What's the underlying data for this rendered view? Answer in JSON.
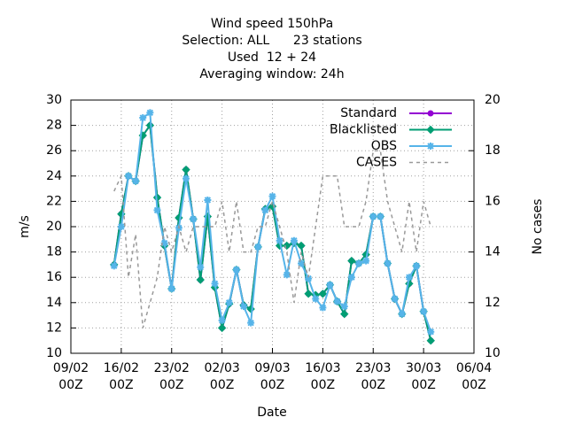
{
  "chart_data": {
    "type": "line",
    "title_lines": [
      "Wind speed 150hPa",
      "Selection: ALL      23 stations",
      "Used  12 + 24",
      "Averaging window: 24h"
    ],
    "xlabel": "Date",
    "ylabel": "m/s",
    "y2label": "No cases",
    "x": [
      "15/02 00Z",
      "16/02 00Z",
      "17/02 00Z",
      "18/02 00Z",
      "19/02 00Z",
      "20/02 00Z",
      "21/02 00Z",
      "22/02 00Z",
      "23/02 00Z",
      "24/02 00Z",
      "25/02 00Z",
      "26/02 00Z",
      "27/02 00Z",
      "28/02 00Z",
      "01/03 00Z",
      "02/03 00Z",
      "03/03 00Z",
      "04/03 00Z",
      "05/03 00Z",
      "06/03 00Z",
      "07/03 00Z",
      "08/03 00Z",
      "09/03 00Z",
      "10/03 00Z",
      "11/03 00Z",
      "12/03 00Z",
      "13/03 00Z",
      "14/03 00Z",
      "15/03 00Z",
      "16/03 00Z",
      "17/03 00Z",
      "18/03 00Z",
      "19/03 00Z",
      "20/03 00Z",
      "21/03 00Z",
      "22/03 00Z",
      "23/03 00Z",
      "24/03 00Z",
      "25/03 00Z",
      "26/03 00Z",
      "27/03 00Z",
      "28/03 00Z",
      "29/03 00Z",
      "30/03 00Z",
      "31/03 00Z"
    ],
    "series": [
      {
        "name": "Standard",
        "color": "#9400d3",
        "marker": "circle",
        "values": [
          17.0,
          21.0,
          24.0,
          23.6,
          27.2,
          28.0,
          22.3,
          18.5,
          15.1,
          20.7,
          24.5,
          20.6,
          15.8,
          20.8,
          15.2,
          12.0,
          13.9,
          16.6,
          13.8,
          13.5,
          18.4,
          21.4,
          21.6,
          18.5,
          18.5,
          18.7,
          18.5,
          14.7,
          14.6,
          14.7,
          15.4,
          14.1,
          13.1,
          17.3,
          17.1,
          17.8,
          20.8,
          20.8,
          17.1,
          14.3,
          13.1,
          15.5,
          16.9,
          13.3,
          11.0
        ]
      },
      {
        "name": "Blacklisted",
        "color": "#009e73",
        "marker": "diamond",
        "values": [
          17.0,
          21.0,
          24.0,
          23.6,
          27.2,
          28.0,
          22.3,
          18.5,
          15.1,
          20.7,
          24.5,
          20.6,
          15.8,
          20.8,
          15.2,
          12.0,
          13.9,
          16.6,
          13.8,
          13.5,
          18.4,
          21.4,
          21.6,
          18.5,
          18.5,
          18.7,
          18.5,
          14.7,
          14.6,
          14.7,
          15.4,
          14.1,
          13.1,
          17.3,
          17.1,
          17.8,
          20.8,
          20.8,
          17.1,
          14.3,
          13.1,
          15.5,
          16.9,
          13.3,
          11.0
        ]
      },
      {
        "name": "OBS",
        "color": "#56b4e9",
        "marker": "star",
        "values": [
          16.9,
          20.0,
          24.0,
          23.6,
          28.6,
          29.0,
          21.3,
          18.7,
          15.1,
          19.9,
          23.8,
          20.6,
          16.8,
          22.1,
          15.5,
          12.6,
          14.0,
          16.6,
          13.7,
          12.4,
          18.4,
          21.3,
          22.4,
          18.9,
          16.2,
          18.9,
          17.1,
          15.9,
          14.3,
          13.6,
          15.4,
          14.1,
          13.7,
          16.0,
          17.1,
          17.3,
          20.8,
          20.8,
          17.1,
          14.3,
          13.1,
          16.0,
          16.9,
          13.3,
          11.7
        ]
      },
      {
        "name": "CASES",
        "color": "#999999",
        "axis": "y2",
        "dashed": true,
        "values": [
          16.4,
          17,
          13,
          14.7,
          11,
          12,
          13,
          15,
          14,
          15,
          14,
          15,
          15,
          15,
          15,
          16,
          14,
          16,
          14,
          14,
          15,
          15,
          16,
          15,
          14,
          12,
          14,
          13,
          15,
          17,
          17,
          17,
          15,
          15,
          15,
          16,
          18,
          18,
          16,
          15,
          14,
          16,
          14,
          16,
          15
        ]
      }
    ],
    "xlim": [
      "09/02 00Z",
      "06/04 00Z"
    ],
    "xticks": [
      "09/02 00Z",
      "16/02 00Z",
      "23/02 00Z",
      "02/03 00Z",
      "09/03 00Z",
      "16/03 00Z",
      "23/03 00Z",
      "30/03 00Z",
      "06/04 00Z"
    ],
    "ylim": [
      10,
      30
    ],
    "yticks": [
      10,
      12,
      14,
      16,
      18,
      20,
      22,
      24,
      26,
      28,
      30
    ],
    "y2lim": [
      10,
      20
    ],
    "y2ticks": [
      10,
      12,
      14,
      16,
      18,
      20
    ],
    "grid": true,
    "legend": "top-right"
  }
}
